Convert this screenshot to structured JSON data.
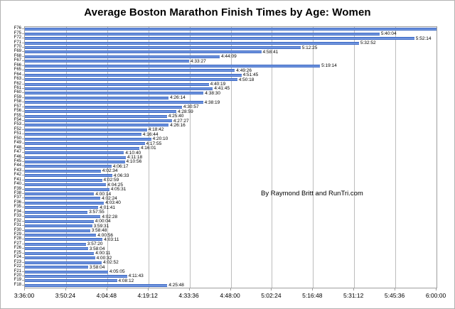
{
  "title": "Average Boston Marathon Finish Times by Age: Women",
  "annotation": "By Raymond Britt and RunTri.com",
  "colors": {
    "bar_main": "#3f6dd0",
    "bar_light": "#96b4ec",
    "bar_dark": "#2e5cb8",
    "gridline": "#bdbdbd",
    "plot_border": "#9e9e9e",
    "text": "#000000",
    "background": "#ffffff"
  },
  "chart_data": {
    "type": "bar",
    "orientation": "horizontal",
    "title": "Average Boston Marathon Finish Times by Age: Women",
    "annotation": "By Raymond Britt and RunTri.com",
    "xlabel": "",
    "ylabel": "",
    "xlim": [
      "3:36:00",
      "6:00:00"
    ],
    "x_ticks": [
      "3:36:00",
      "3:50:24",
      "4:04:48",
      "4:19:12",
      "4:33:36",
      "4:48:00",
      "5:02:24",
      "5:16:48",
      "5:31:12",
      "5:45:36",
      "6:00:00"
    ],
    "grid": true,
    "legend": false,
    "bars": [
      {
        "age": "F76",
        "time": "6:00:00",
        "label": ""
      },
      {
        "age": "F75",
        "time": "5:40:04",
        "label": "5:40:04"
      },
      {
        "age": "F72",
        "time": "5:52:14",
        "label": "5:52:14"
      },
      {
        "age": "F71",
        "time": "5:32:52",
        "label": "5:32:52"
      },
      {
        "age": "F70",
        "time": "5:12:25",
        "label": "5:12:25"
      },
      {
        "age": "F69",
        "time": "4:58:41",
        "label": "4:58:41"
      },
      {
        "age": "F68",
        "time": "4:44:09",
        "label": "4:44:09"
      },
      {
        "age": "F67",
        "time": "4:33:27",
        "label": "4:33:27"
      },
      {
        "age": "F66",
        "time": "5:19:14",
        "label": "5:19:14"
      },
      {
        "age": "F65",
        "time": "4:49:26",
        "label": "4:49:26"
      },
      {
        "age": "F64",
        "time": "4:51:45",
        "label": "4:51:45"
      },
      {
        "age": "F63",
        "time": "4:50:18",
        "label": "4:50:18"
      },
      {
        "age": "F62",
        "time": "4:40:19",
        "label": "4:40:19"
      },
      {
        "age": "F61",
        "time": "4:41:45",
        "label": "4:41:45"
      },
      {
        "age": "F60",
        "time": "4:38:30",
        "label": "4:38:30"
      },
      {
        "age": "F59",
        "time": "4:26:14",
        "label": "4:26:14"
      },
      {
        "age": "F58",
        "time": "4:38:19",
        "label": "4:38:19"
      },
      {
        "age": "F57",
        "time": "4:30:57",
        "label": "4:30:57"
      },
      {
        "age": "F56",
        "time": "4:28:59",
        "label": "4:28:59"
      },
      {
        "age": "F55",
        "time": "4:25:40",
        "label": "4:25:40"
      },
      {
        "age": "F54",
        "time": "4:27:27",
        "label": "4:27:27"
      },
      {
        "age": "F53",
        "time": "4:26:16",
        "label": "4:26:16"
      },
      {
        "age": "F52",
        "time": "4:18:42",
        "label": "4:18:42"
      },
      {
        "age": "F51",
        "time": "4:16:44",
        "label": "4:16:44"
      },
      {
        "age": "F50",
        "time": "4:20:10",
        "label": "4:20:10"
      },
      {
        "age": "F49",
        "time": "4:17:55",
        "label": "4:17:55"
      },
      {
        "age": "F48",
        "time": "4:16:01",
        "label": "4:16:01"
      },
      {
        "age": "F47",
        "time": "4:10:40",
        "label": "4:10:40"
      },
      {
        "age": "F46",
        "time": "4:11:18",
        "label": "4:11:18"
      },
      {
        "age": "F45",
        "time": "4:10:56",
        "label": "4:10:56"
      },
      {
        "age": "F44",
        "time": "4:06:17",
        "label": "4:06:17"
      },
      {
        "age": "F43",
        "time": "4:02:34",
        "label": "4:02:34"
      },
      {
        "age": "F42",
        "time": "4:06:33",
        "label": "4:06:33"
      },
      {
        "age": "F41",
        "time": "4:02:59",
        "label": "4:02:59"
      },
      {
        "age": "F40",
        "time": "4:04:25",
        "label": "4:04:25"
      },
      {
        "age": "F39",
        "time": "4:05:31",
        "label": "4:05:31"
      },
      {
        "age": "F38",
        "time": "4:00:14",
        "label": "4:00:14"
      },
      {
        "age": "F37",
        "time": "4:02:24",
        "label": "4:02:24"
      },
      {
        "age": "F36",
        "time": "4:03:40",
        "label": "4:03:40"
      },
      {
        "age": "F35",
        "time": "4:01:41",
        "label": "4:01:41"
      },
      {
        "age": "F34",
        "time": "3:57:55",
        "label": "3:57:55"
      },
      {
        "age": "F33",
        "time": "4:02:28",
        "label": "4:02:28"
      },
      {
        "age": "F32",
        "time": "4:00:04",
        "label": "4:00:04"
      },
      {
        "age": "F31",
        "time": "3:59:31",
        "label": "3:59:31"
      },
      {
        "age": "F30",
        "time": "3:58:48",
        "label": "3:58:48"
      },
      {
        "age": "F29",
        "time": "4:00:56",
        "label": "4:00:56"
      },
      {
        "age": "F28",
        "time": "4:03:11",
        "label": "4:03:11"
      },
      {
        "age": "F27",
        "time": "3:57:20",
        "label": "3:57:20"
      },
      {
        "age": "F26",
        "time": "3:58:04",
        "label": "3:58:04"
      },
      {
        "age": "F25",
        "time": "4:00:11",
        "label": "4:00:11"
      },
      {
        "age": "F24",
        "time": "4:00:32",
        "label": "4:00:32"
      },
      {
        "age": "F23",
        "time": "4:02:52",
        "label": "4:02:52"
      },
      {
        "age": "F22",
        "time": "3:58:04",
        "label": "3:58:04"
      },
      {
        "age": "F21",
        "time": "4:05:05",
        "label": "4:05:05"
      },
      {
        "age": "F20",
        "time": "4:11:43",
        "label": "4:11:43"
      },
      {
        "age": "F19",
        "time": "4:08:12",
        "label": "4:08:12"
      },
      {
        "age": "F18",
        "time": "4:25:48",
        "label": "4:25:48"
      }
    ]
  }
}
